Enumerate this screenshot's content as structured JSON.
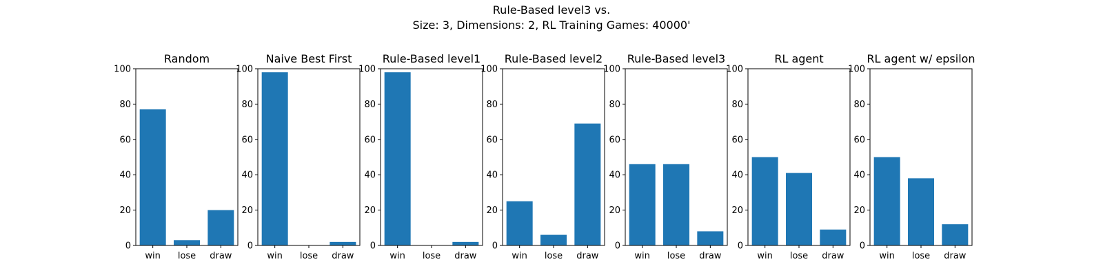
{
  "figure": {
    "title_line1": "Rule-Based level3 vs.",
    "title_line2": "Size: 3, Dimensions: 2, RL Training Games: 40000'"
  },
  "chart_data": [
    {
      "type": "bar",
      "title": "Random",
      "categories": [
        "win",
        "lose",
        "draw"
      ],
      "values": [
        77,
        3,
        20
      ],
      "ylim": [
        0,
        100
      ],
      "yticks": [
        0,
        20,
        40,
        60,
        80,
        100
      ],
      "color": "#1f77b4"
    },
    {
      "type": "bar",
      "title": "Naive Best First",
      "categories": [
        "win",
        "lose",
        "draw"
      ],
      "values": [
        98,
        0,
        2
      ],
      "ylim": [
        0,
        100
      ],
      "yticks": [
        0,
        20,
        40,
        60,
        80,
        100
      ],
      "color": "#1f77b4"
    },
    {
      "type": "bar",
      "title": "Rule-Based level1",
      "categories": [
        "win",
        "lose",
        "draw"
      ],
      "values": [
        98,
        0,
        2
      ],
      "ylim": [
        0,
        100
      ],
      "yticks": [
        0,
        20,
        40,
        60,
        80,
        100
      ],
      "color": "#1f77b4"
    },
    {
      "type": "bar",
      "title": "Rule-Based level2",
      "categories": [
        "win",
        "lose",
        "draw"
      ],
      "values": [
        25,
        6,
        69
      ],
      "ylim": [
        0,
        100
      ],
      "yticks": [
        0,
        20,
        40,
        60,
        80,
        100
      ],
      "color": "#1f77b4"
    },
    {
      "type": "bar",
      "title": "Rule-Based level3",
      "categories": [
        "win",
        "lose",
        "draw"
      ],
      "values": [
        46,
        46,
        8
      ],
      "ylim": [
        0,
        100
      ],
      "yticks": [
        0,
        20,
        40,
        60,
        80,
        100
      ],
      "color": "#1f77b4"
    },
    {
      "type": "bar",
      "title": "RL agent",
      "categories": [
        "win",
        "lose",
        "draw"
      ],
      "values": [
        50,
        41,
        9
      ],
      "ylim": [
        0,
        100
      ],
      "yticks": [
        0,
        20,
        40,
        60,
        80,
        100
      ],
      "color": "#1f77b4"
    },
    {
      "type": "bar",
      "title": "RL agent w/ epsilon",
      "categories": [
        "win",
        "lose",
        "draw"
      ],
      "values": [
        50,
        38,
        12
      ],
      "ylim": [
        0,
        100
      ],
      "yticks": [
        0,
        20,
        40,
        60,
        80,
        100
      ],
      "color": "#1f77b4"
    }
  ]
}
